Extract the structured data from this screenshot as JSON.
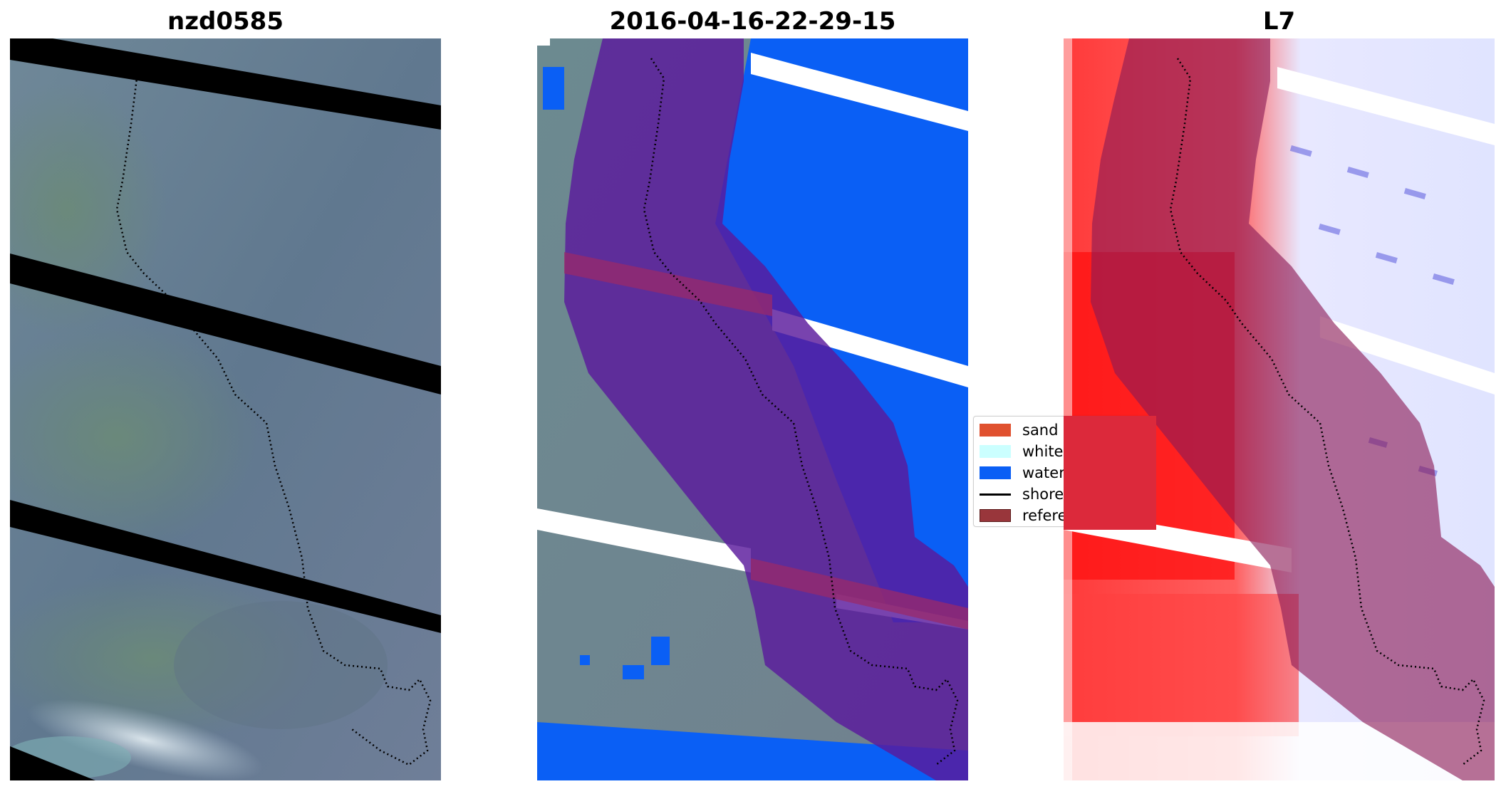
{
  "panels": [
    {
      "title": "nzd0585"
    },
    {
      "title": "2016-04-16-22-29-15"
    },
    {
      "title": "L7"
    }
  ],
  "legend": {
    "items": [
      {
        "label": "sand",
        "color": "#e0512f",
        "kind": "patch"
      },
      {
        "label": "whitewater",
        "color": "#cbffff",
        "kind": "patch"
      },
      {
        "label": "water",
        "color": "#0a5ff5",
        "kind": "patch"
      },
      {
        "label": "shoreline",
        "color": "#000000",
        "kind": "line"
      },
      {
        "label": "reference shoreline buffer",
        "color": "#99363b",
        "kind": "patch"
      }
    ]
  },
  "colors": {
    "scanline_gap": "#000000",
    "water_class": "#0a5ff5",
    "buffer_overlay": "#8a1a55",
    "index_positive": "#ff2020",
    "index_negative": "#3030c8"
  }
}
